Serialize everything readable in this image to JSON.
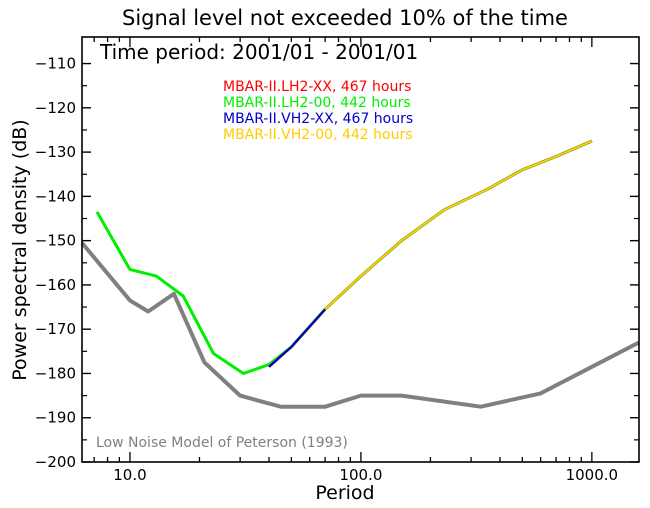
{
  "chart_data": {
    "type": "line",
    "title": "Signal level not exceeded 10% of the time",
    "subtitle": "Time period: 2001/01 - 2001/01",
    "xlabel": "Period",
    "ylabel": "Power spectral density (dB)",
    "x_scale": "log",
    "xlim": [
      6.2,
      1600
    ],
    "ylim": [
      -200,
      -104
    ],
    "x_ticks": [
      {
        "value": 10,
        "label": "10.0"
      },
      {
        "value": 100,
        "label": "100.0"
      },
      {
        "value": 1000,
        "label": "1000.0"
      }
    ],
    "y_ticks": [
      {
        "value": -110,
        "label": "−110"
      },
      {
        "value": -120,
        "label": "−120"
      },
      {
        "value": -130,
        "label": "−130"
      },
      {
        "value": -140,
        "label": "−140"
      },
      {
        "value": -150,
        "label": "−150"
      },
      {
        "value": -160,
        "label": "−160"
      },
      {
        "value": -170,
        "label": "−170"
      },
      {
        "value": -180,
        "label": "−180"
      },
      {
        "value": -190,
        "label": "−190"
      },
      {
        "value": -200,
        "label": "−200"
      }
    ],
    "legend_position": "top-center",
    "series": [
      {
        "name": "MBAR-II.LH2-XX, 467 hours",
        "color": "#ff0000",
        "x": [
          40,
          50,
          70,
          100,
          150,
          230,
          350,
          500,
          700,
          1000
        ],
        "y": [
          -178.5,
          -174,
          -165.5,
          -158,
          -150,
          -143,
          -138.5,
          -134,
          -131,
          -127.5
        ]
      },
      {
        "name": "MBAR-II.LH2-00, 442 hours",
        "color": "#00ee00",
        "x": [
          7.2,
          10,
          13,
          17,
          23,
          31,
          40,
          50,
          70,
          100,
          150,
          230,
          350,
          500,
          700,
          1000
        ],
        "y": [
          -143.5,
          -156.5,
          -158,
          -162.5,
          -175.5,
          -180,
          -178,
          -174,
          -165.5,
          -158,
          -150,
          -143,
          -138.5,
          -134,
          -131,
          -127.5
        ]
      },
      {
        "name": "MBAR-II.VH2-XX, 467 hours",
        "color": "#0000cc",
        "x": [
          40,
          50,
          70,
          100,
          150,
          230,
          350,
          500,
          700,
          1000
        ],
        "y": [
          -178.5,
          -174,
          -165.5,
          -158,
          -150,
          -143,
          -138.5,
          -134,
          -131,
          -127.5
        ]
      },
      {
        "name": "MBAR-II.VH2-00, 442 hours",
        "color": "#ffcc00",
        "x": [
          70,
          100,
          150,
          230,
          350,
          500,
          700,
          1000
        ],
        "y": [
          -165.5,
          -158,
          -150,
          -143,
          -138.5,
          -134,
          -131,
          -127.5
        ]
      }
    ],
    "reference": {
      "label": "Low Noise Model of Peterson (1993)",
      "color": "#808080",
      "x": [
        6.2,
        10,
        12,
        15.5,
        21,
        30,
        45,
        70,
        100,
        150,
        330,
        600,
        1000,
        1600
      ],
      "y": [
        -150.5,
        -163.5,
        -166,
        -162,
        -177.5,
        -185,
        -187.5,
        -187.5,
        -185,
        -185,
        -187.5,
        -184.5,
        -178.5,
        -173
      ]
    }
  }
}
